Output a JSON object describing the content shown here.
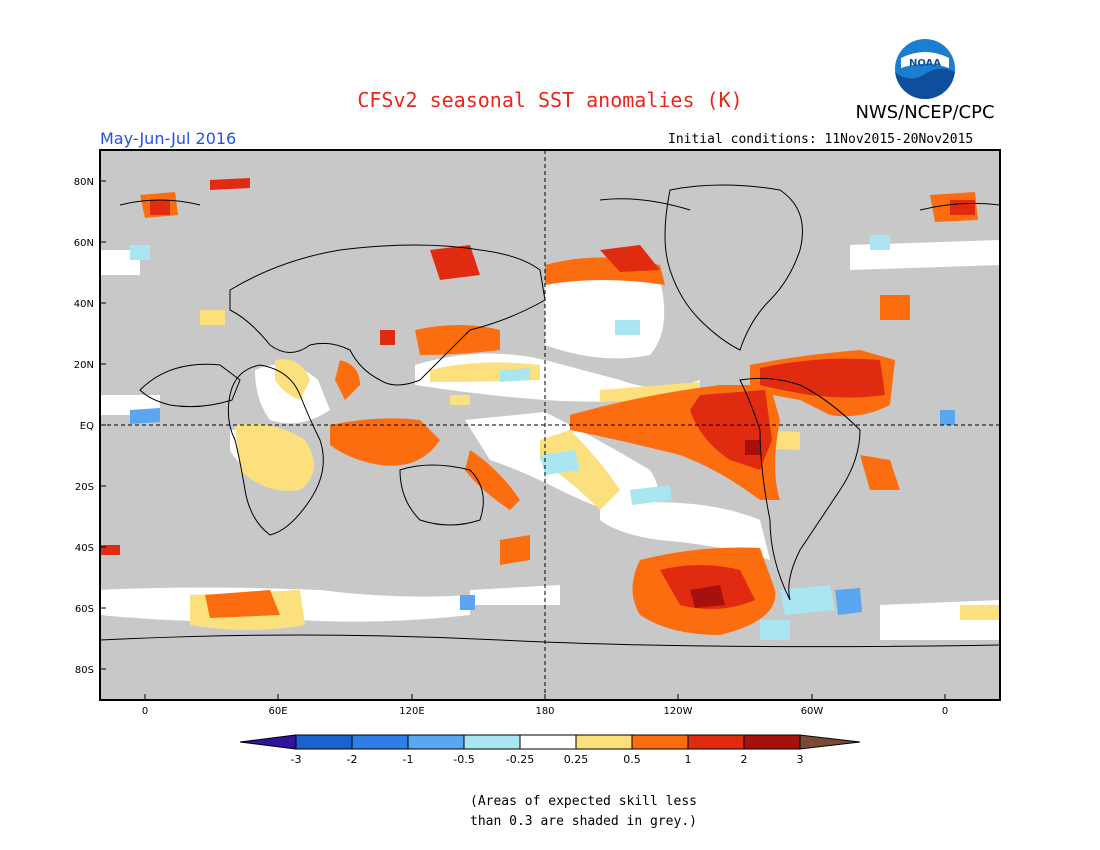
{
  "header": {
    "title": "CFSv2 seasonal SST anomalies (K)",
    "organization": "NWS/NCEP/CPC",
    "logo_text": "NOAA",
    "season": "May-Jun-Jul 2016",
    "initial_conditions": "Initial conditions: 11Nov2015-20Nov2015"
  },
  "map": {
    "lat_ticks": [
      "80N",
      "60N",
      "40N",
      "20N",
      "EQ",
      "20S",
      "40S",
      "60S",
      "80S"
    ],
    "lon_ticks": [
      "0",
      "60E",
      "120E",
      "180",
      "120W",
      "60W",
      "0"
    ],
    "reference_lines": [
      "Equator",
      "Date line 180"
    ],
    "grey_meaning": "skill less than 0.3"
  },
  "colorbar": {
    "labels": [
      "-3",
      "-2",
      "-1",
      "-0.5",
      "-0.25",
      "0.25",
      "0.5",
      "1",
      "2",
      "3"
    ],
    "colors": [
      "#30149c",
      "#1b61d0",
      "#2e7ee6",
      "#5aa6f0",
      "#a9e6f2",
      "#ffffff",
      "#fde07e",
      "#fb6d0e",
      "#e02b10",
      "#a8100d",
      "#7a4a36"
    ],
    "grey_color": "#c8c8c8"
  },
  "note": {
    "line1": "(Areas of expected skill less",
    "line2": "than 0.3 are shaded in grey.)"
  },
  "colors": {
    "title": "#e8261c",
    "season": "#1f52e8",
    "ocean_grey": "#c8c8c8"
  }
}
